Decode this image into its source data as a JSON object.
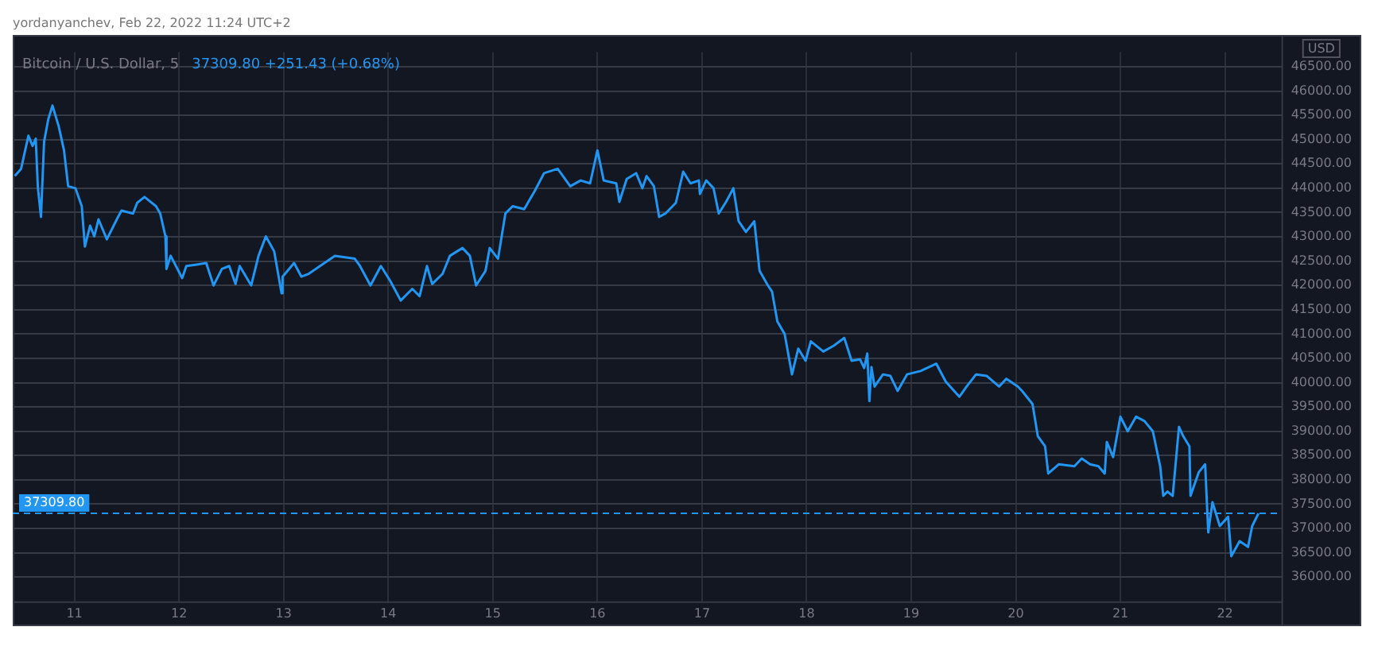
{
  "chart_data": {
    "type": "line",
    "title": "Bitcoin / U.S. Dollar, 5",
    "subtitle": "yordanyanchev, Feb 22, 2022 11:24 UTC+2",
    "annotations": [
      "37309.80 +251.43 (+0.68%)"
    ],
    "ylabel": "USD",
    "x": [
      10.43,
      10.49,
      10.56,
      10.6,
      10.63,
      10.65,
      10.68,
      10.71,
      10.75,
      10.79,
      10.85,
      10.9,
      10.94,
      11.01,
      11.07,
      11.1,
      11.15,
      11.19,
      11.23,
      11.31,
      11.41,
      11.45,
      11.56,
      11.6,
      11.67,
      11.78,
      11.82,
      11.87,
      11.88,
      11.92,
      12.03,
      12.07,
      12.17,
      12.26,
      12.33,
      12.41,
      12.48,
      12.54,
      12.58,
      12.69,
      12.76,
      12.83,
      12.91,
      12.98,
      12.99,
      13.1,
      13.17,
      13.24,
      13.39,
      13.49,
      13.68,
      13.73,
      13.83,
      13.93,
      14.02,
      14.12,
      14.23,
      14.3,
      14.37,
      14.42,
      14.52,
      14.59,
      14.71,
      14.78,
      14.84,
      14.93,
      14.97,
      15.05,
      15.12,
      15.19,
      15.3,
      15.4,
      15.49,
      15.62,
      15.74,
      15.84,
      15.93,
      16.0,
      16.06,
      16.18,
      16.21,
      16.28,
      16.37,
      16.43,
      16.47,
      16.54,
      16.59,
      16.65,
      16.75,
      16.82,
      16.89,
      16.97,
      16.98,
      17.04,
      17.11,
      17.16,
      17.23,
      17.3,
      17.35,
      17.42,
      17.5,
      17.55,
      17.63,
      17.67,
      17.72,
      17.79,
      17.86,
      17.92,
      17.99,
      18.04,
      18.16,
      18.26,
      18.36,
      18.43,
      18.51,
      18.55,
      18.58,
      18.6,
      18.62,
      18.65,
      18.73,
      18.8,
      18.87,
      18.96,
      19.09,
      19.24,
      19.33,
      19.46,
      19.53,
      19.62,
      19.72,
      19.84,
      19.91,
      20.02,
      20.06,
      20.16,
      20.21,
      20.28,
      20.31,
      20.41,
      20.56,
      20.63,
      20.71,
      20.79,
      20.85,
      20.87,
      20.93,
      21.0,
      21.07,
      21.15,
      21.23,
      21.31,
      21.38,
      21.41,
      21.45,
      21.5,
      21.56,
      21.6,
      21.66,
      21.67,
      21.75,
      21.81,
      21.84,
      21.88,
      21.95,
      22.03,
      22.06,
      22.14,
      22.22,
      22.26,
      22.32
    ],
    "series": [
      {
        "color": "#2196f3",
        "values": [
          44250,
          44400,
          45080,
          44870,
          45020,
          44030,
          43410,
          44960,
          45420,
          45700,
          45270,
          44780,
          44040,
          44000,
          43630,
          42800,
          43230,
          43010,
          43360,
          42950,
          43380,
          43540,
          43480,
          43700,
          43820,
          43630,
          43480,
          43010,
          42340,
          42610,
          42150,
          42400,
          42430,
          42460,
          42000,
          42340,
          42400,
          42030,
          42400,
          42000,
          42610,
          43010,
          42700,
          41840,
          42180,
          42460,
          42180,
          42240,
          42460,
          42610,
          42550,
          42400,
          42000,
          42400,
          42090,
          41690,
          41930,
          41780,
          42400,
          42030,
          42240,
          42610,
          42770,
          42610,
          42000,
          42300,
          42770,
          42550,
          43480,
          43630,
          43570,
          43940,
          44310,
          44400,
          44040,
          44160,
          44100,
          44780,
          44160,
          44100,
          43720,
          44190,
          44310,
          44000,
          44250,
          44040,
          43410,
          43480,
          43700,
          44340,
          44100,
          44160,
          43880,
          44160,
          44000,
          43480,
          43720,
          44000,
          43320,
          43100,
          43320,
          42300,
          42000,
          41870,
          41260,
          41000,
          40170,
          40700,
          40450,
          40850,
          40640,
          40760,
          40920,
          40450,
          40480,
          40300,
          40600,
          39620,
          40320,
          39920,
          40170,
          40140,
          39830,
          40170,
          40240,
          40390,
          40020,
          39710,
          39920,
          40170,
          40140,
          39920,
          40080,
          39920,
          39830,
          39560,
          38900,
          38690,
          38130,
          38320,
          38280,
          38440,
          38320,
          38280,
          38130,
          38780,
          38470,
          39300,
          39000,
          39300,
          39210,
          39000,
          38280,
          37670,
          37760,
          37670,
          39090,
          38900,
          38690,
          37670,
          38160,
          38320,
          36920,
          37540,
          37050,
          37240,
          36430,
          36740,
          36620,
          37050,
          37310
        ]
      }
    ],
    "xlim": [
      10.41,
      22.54
    ],
    "xticks": [
      11,
      12,
      13,
      14,
      15,
      16,
      17,
      18,
      19,
      20,
      21,
      22
    ],
    "ylim": [
      35500,
      46800
    ],
    "yticks": [
      {
        "value": 36000,
        "label": "36000.00"
      },
      {
        "value": 36500,
        "label": "36500.00"
      },
      {
        "value": 37000,
        "label": "37000.00"
      },
      {
        "value": 37500,
        "label": "37500.00"
      },
      {
        "value": 38000,
        "label": "38000.00"
      },
      {
        "value": 38500,
        "label": "38500.00"
      },
      {
        "value": 39000,
        "label": "39000.00"
      },
      {
        "value": 39500,
        "label": "39500.00"
      },
      {
        "value": 40000,
        "label": "40000.00"
      },
      {
        "value": 40500,
        "label": "40500.00"
      },
      {
        "value": 41000,
        "label": "41000.00"
      },
      {
        "value": 41500,
        "label": "41500.00"
      },
      {
        "value": 42000,
        "label": "42000.00"
      },
      {
        "value": 42500,
        "label": "42500.00"
      },
      {
        "value": 43000,
        "label": "43000.00"
      },
      {
        "value": 43500,
        "label": "43500.00"
      },
      {
        "value": 44000,
        "label": "44000.00"
      },
      {
        "value": 44500,
        "label": "44500.00"
      },
      {
        "value": 45000,
        "label": "45000.00"
      },
      {
        "value": 45500,
        "label": "45500.00"
      },
      {
        "value": 46000,
        "label": "46000.00"
      },
      {
        "value": 46500,
        "label": "46500.00"
      }
    ],
    "ref_lines": [
      {
        "axis": "y",
        "value": 37309.8,
        "label": "37309.80",
        "color": "#2196f3",
        "line_style": "dashed"
      }
    ],
    "grid": true,
    "legend": false,
    "marker": "none",
    "line_style": "solid"
  }
}
